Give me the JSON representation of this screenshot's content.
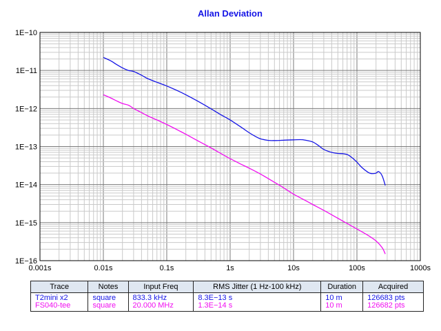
{
  "chart_data": {
    "type": "line",
    "title": "Allan Deviation",
    "xlabel": "",
    "ylabel": "",
    "x_scale": "log",
    "y_scale": "log",
    "xlim": [
      0.001,
      1000
    ],
    "ylim": [
      1e-16,
      1e-10
    ],
    "x_tick_labels": [
      "0.001s",
      "0.01s",
      "0.1s",
      "1s",
      "10s",
      "100s",
      "1000s"
    ],
    "y_tick_labels": [
      "1E−16",
      "1E−15",
      "1E−14",
      "1E−13",
      "1E−12",
      "1E−11",
      "1E−10"
    ],
    "grid": true,
    "series": [
      {
        "name": "T2mini x2",
        "color": "#1414e6",
        "x": [
          0.01,
          0.013,
          0.016,
          0.02,
          0.025,
          0.03,
          0.04,
          0.05,
          0.07,
          0.1,
          0.15,
          0.2,
          0.3,
          0.5,
          0.7,
          1,
          1.5,
          2,
          2.5,
          3,
          4,
          5,
          6,
          7,
          10,
          13,
          15,
          20,
          25,
          30,
          40,
          50,
          60,
          70,
          80,
          90,
          100,
          120,
          150,
          170,
          200,
          220,
          250,
          280
        ],
        "y": [
          2.2e-11,
          1.8e-11,
          1.45e-11,
          1.17e-11,
          1e-11,
          9.4e-12,
          7.5e-12,
          6.1e-12,
          4.9e-12,
          3.9e-12,
          2.9e-12,
          2.3e-12,
          1.6e-12,
          9.8e-13,
          7e-13,
          5e-13,
          3.2e-13,
          2.3e-13,
          1.85e-13,
          1.6e-13,
          1.45e-13,
          1.44e-13,
          1.45e-13,
          1.47e-13,
          1.5e-13,
          1.52e-13,
          1.48e-13,
          1.32e-13,
          1.05e-13,
          8.4e-14,
          7e-14,
          6.6e-14,
          6.5e-14,
          6.2e-14,
          5.4e-14,
          4.6e-14,
          3.9e-14,
          2.8e-14,
          2.1e-14,
          1.95e-14,
          2e-14,
          2.2e-14,
          1.7e-14,
          9.5e-15
        ]
      },
      {
        "name": "FS040-tee",
        "color": "#f00ef0",
        "x": [
          0.01,
          0.013,
          0.016,
          0.02,
          0.025,
          0.03,
          0.04,
          0.05,
          0.07,
          0.1,
          0.15,
          0.2,
          0.3,
          0.5,
          0.7,
          1,
          1.5,
          2,
          3,
          5,
          7,
          10,
          15,
          20,
          30,
          50,
          70,
          100,
          150,
          200,
          250,
          280
        ],
        "y": [
          2.3e-12,
          1.9e-12,
          1.6e-12,
          1.35e-12,
          1.22e-12,
          1e-12,
          7.8e-13,
          6.4e-13,
          5e-13,
          3.8e-13,
          2.7e-13,
          2.1e-13,
          1.45e-13,
          9.2e-14,
          6.7e-14,
          4.8e-14,
          3.4e-14,
          2.7e-14,
          1.9e-14,
          1.15e-14,
          8.2e-15,
          5.6e-15,
          3.9e-15,
          3e-15,
          2.1e-15,
          1.3e-15,
          9.5e-16,
          6.8e-16,
          4.6e-16,
          3.3e-16,
          2.2e-16,
          1.5e-16
        ]
      }
    ]
  },
  "table": {
    "headers": [
      "Trace",
      "Notes",
      "Input Freq",
      "RMS Jitter (1 Hz-100 kHz)",
      "Duration",
      "Acquired"
    ],
    "rows": [
      {
        "color": "#1414e6",
        "cells": [
          "T2mini x2",
          "square",
          "833.3 kHz",
          "8.3E−13 s",
          "10 m",
          "126683 pts"
        ]
      },
      {
        "color": "#f00ef0",
        "cells": [
          "FS040-tee",
          "square",
          "20.000 MHz",
          "1.3E−14 s",
          "10 m",
          "126682 pts"
        ]
      }
    ]
  }
}
